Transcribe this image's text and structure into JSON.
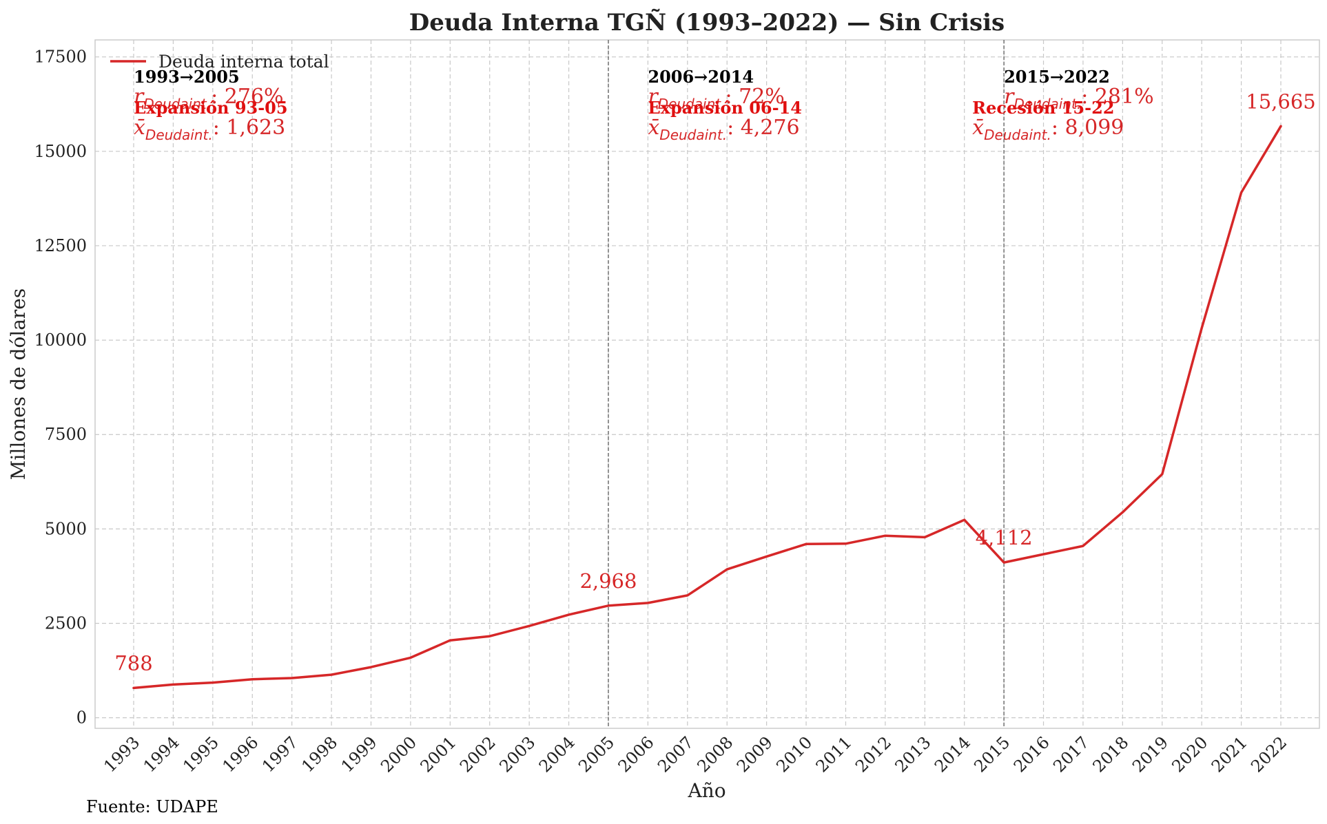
{
  "chart_data": {
    "type": "line",
    "title": "Deuda Interna TGÑ (1993–2022) — Sin Crisis",
    "xlabel": "Año",
    "ylabel": "Millones de dólares",
    "ylim": [
      -280,
      17950
    ],
    "yticks": [
      0,
      2500,
      5000,
      7500,
      10000,
      12500,
      15000,
      17500
    ],
    "grid": true,
    "legend_position": "top-left",
    "line_color": "#d62728",
    "x": [
      1993,
      1994,
      1995,
      1996,
      1997,
      1998,
      1999,
      2000,
      2001,
      2002,
      2003,
      2004,
      2005,
      2006,
      2007,
      2008,
      2009,
      2010,
      2011,
      2012,
      2013,
      2014,
      2015,
      2016,
      2017,
      2018,
      2019,
      2020,
      2021,
      2022
    ],
    "series": [
      {
        "name": "Deuda interna total",
        "values": [
          788,
          880,
          930,
          1020,
          1050,
          1140,
          1340,
          1590,
          2050,
          2160,
          2430,
          2730,
          2968,
          3040,
          3240,
          3930,
          4270,
          4600,
          4610,
          4820,
          4780,
          5240,
          4112,
          4330,
          4550,
          5440,
          6450,
          10320,
          13910,
          15665
        ]
      }
    ],
    "point_labels": [
      {
        "x": 1993,
        "text": "788"
      },
      {
        "x": 2005,
        "text": "2,968"
      },
      {
        "x": 2015,
        "text": "4,112"
      },
      {
        "x": 2022,
        "text": "15,665"
      }
    ],
    "period_dividers": [
      2005,
      2015
    ],
    "annotations": [
      {
        "heading": "1993→2005",
        "r_value": ": 276%",
        "phase": "Expansión 93-05",
        "mean_value": ": 1,623",
        "x_heading": 1993,
        "x_phase": 1993
      },
      {
        "heading": "2006→2014",
        "r_value": ": 72%",
        "phase": "Expansión 06-14",
        "mean_value": ": 4,276",
        "x_heading": 2006,
        "x_phase": 2006
      },
      {
        "heading": "2015→2022",
        "r_value": ": 281%",
        "phase": "Recesión 15-22",
        "mean_value": ": 8,099",
        "x_heading": 2015,
        "x_phase": 2014.2
      }
    ],
    "stat_symbols": {
      "r": "r",
      "mean": "x̄",
      "subscript": "Deudaint."
    },
    "source": "Fuente: UDAPE"
  }
}
